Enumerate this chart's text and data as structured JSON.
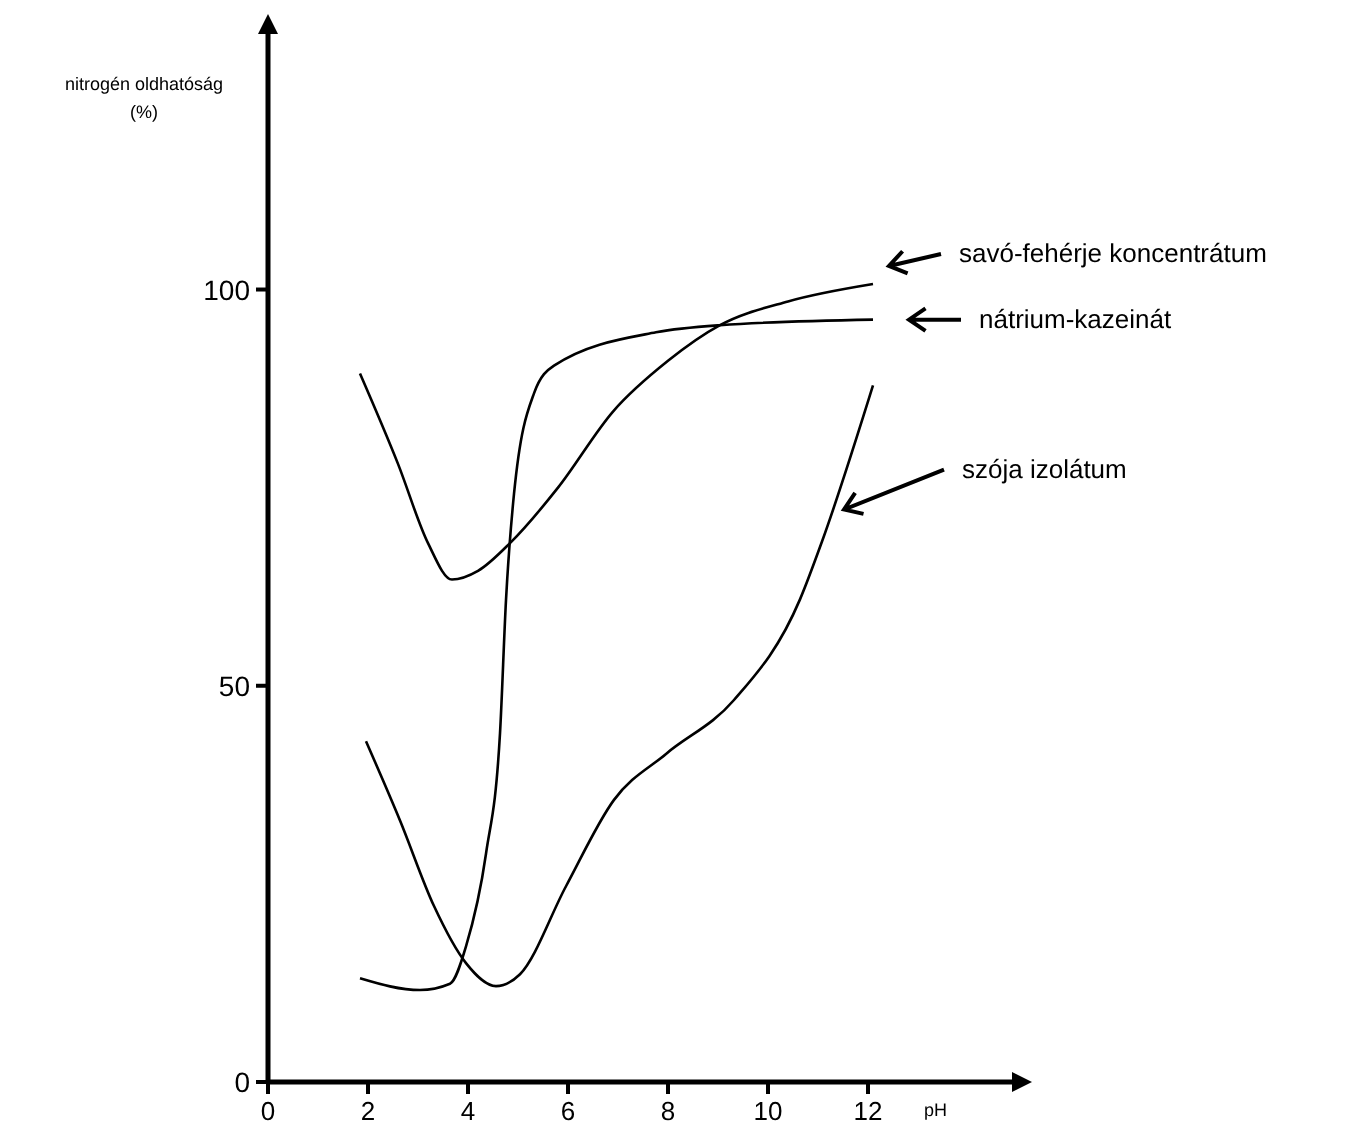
{
  "chart_data": {
    "type": "line",
    "xlabel": "pH",
    "ylabel": "nitrogén oldhatóság\n(%)",
    "xlim": [
      0,
      15
    ],
    "ylim": [
      0,
      133
    ],
    "xticks": [
      0,
      2,
      4,
      6,
      8,
      10,
      12
    ],
    "yticks": [
      0,
      50,
      100
    ],
    "grid": false,
    "legend": "right",
    "marker": "none",
    "line_style": "solid",
    "series": [
      {
        "name": "savó-fehérje koncentrátum",
        "color": "#000000",
        "x": [
          1.84,
          2.6,
          3.2,
          3.68,
          4.2,
          4.84,
          5.8,
          6.9,
          8,
          9.04,
          10.4,
          12.1
        ],
        "values": [
          89.4,
          78,
          68,
          63.4,
          64.5,
          68,
          75,
          84.6,
          91,
          95.5,
          98.5,
          100.7
        ]
      },
      {
        "name": "nátrium-kazeinát",
        "color": "#000000",
        "x": [
          1.84,
          3.04,
          3.64,
          3.96,
          4.36,
          4.64,
          4.76,
          4.92,
          5.32,
          5.72,
          7.76,
          9.04,
          12.1
        ],
        "values": [
          13.1,
          11.6,
          12.4,
          17.1,
          28.8,
          44,
          60.8,
          74.2,
          86.9,
          90.4,
          94.6,
          95.5,
          96.2
        ]
      },
      {
        "name": "szója izolátum",
        "color": "#000000",
        "x": [
          1.96,
          2.64,
          3.32,
          3.96,
          4.56,
          5.04,
          5.96,
          6.92,
          7.96,
          9.32,
          10.64,
          11.08,
          12.1
        ],
        "values": [
          43,
          33,
          22.2,
          15,
          12.1,
          13.6,
          24.7,
          35.6,
          41.4,
          48.2,
          60.9,
          68.2,
          87.9
        ]
      }
    ]
  }
}
